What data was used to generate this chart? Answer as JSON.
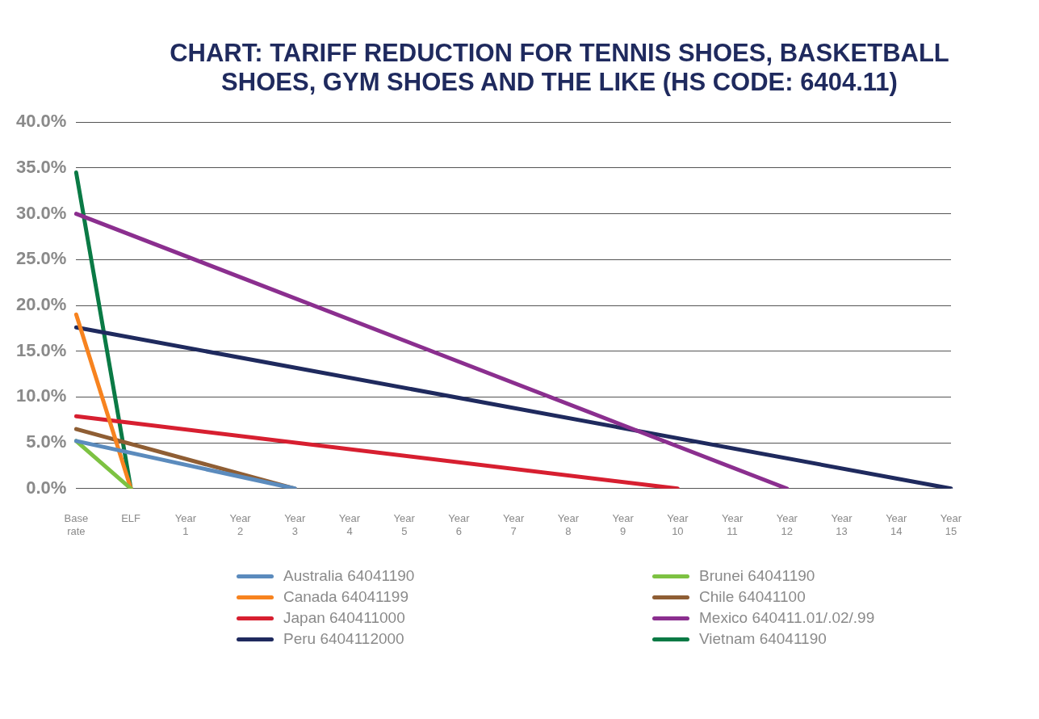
{
  "chart_data": {
    "type": "line",
    "title": "CHART: TARIFF REDUCTION FOR TENNIS SHOES, BASKETBALL SHOES, GYM SHOES AND THE LIKE (HS CODE: 6404.11)",
    "categories": [
      "Base rate",
      "ELF",
      "Year 1",
      "Year 2",
      "Year 3",
      "Year 4",
      "Year 5",
      "Year 6",
      "Year 7",
      "Year 8",
      "Year 9",
      "Year 10",
      "Year 11",
      "Year 12",
      "Year 13",
      "Year 14",
      "Year 15"
    ],
    "series": [
      {
        "name": "Australia 64041190",
        "color": "#5b8bbd",
        "values": [
          5.2,
          null,
          null,
          null,
          0,
          null,
          null,
          null,
          null,
          null,
          null,
          null,
          null,
          null,
          null,
          null,
          null
        ]
      },
      {
        "name": "Brunei 64041190",
        "color": "#7dc242",
        "values": [
          5.2,
          0,
          null,
          null,
          null,
          null,
          null,
          null,
          null,
          null,
          null,
          null,
          null,
          null,
          null,
          null,
          null
        ]
      },
      {
        "name": "Canada 64041199",
        "color": "#f7831f",
        "values": [
          19,
          0,
          null,
          null,
          null,
          null,
          null,
          null,
          null,
          null,
          null,
          null,
          null,
          null,
          null,
          null,
          null
        ]
      },
      {
        "name": "Chile 64041100",
        "color": "#8f5e34",
        "values": [
          6.5,
          null,
          null,
          null,
          0,
          null,
          null,
          null,
          null,
          null,
          null,
          null,
          null,
          null,
          null,
          null,
          null
        ]
      },
      {
        "name": "Japan 640411000",
        "color": "#d71f30",
        "values": [
          7.9,
          null,
          null,
          null,
          null,
          null,
          null,
          null,
          null,
          null,
          null,
          0,
          null,
          null,
          null,
          null,
          null
        ]
      },
      {
        "name": "Mexico 640411.01/.02/.99",
        "color": "#8b2f8f",
        "values": [
          30,
          null,
          null,
          null,
          null,
          null,
          null,
          null,
          null,
          null,
          null,
          null,
          null,
          0,
          null,
          null,
          null
        ]
      },
      {
        "name": "Peru 6404112000",
        "color": "#1f2a5e",
        "values": [
          17.6,
          null,
          null,
          null,
          null,
          null,
          null,
          null,
          null,
          null,
          null,
          null,
          null,
          null,
          null,
          null,
          0
        ]
      },
      {
        "name": "Vietnam 64041190",
        "color": "#0a7a45",
        "values": [
          34.5,
          0,
          null,
          null,
          null,
          null,
          null,
          null,
          null,
          null,
          null,
          null,
          null,
          null,
          null,
          null,
          null
        ]
      }
    ],
    "ylim": [
      0,
      40
    ],
    "yticks": [
      {
        "value": 0,
        "label": "0.0%"
      },
      {
        "value": 5,
        "label": "5.0%"
      },
      {
        "value": 10,
        "label": "10.0%"
      },
      {
        "value": 15,
        "label": "15.0%"
      },
      {
        "value": 20,
        "label": "20.0%"
      },
      {
        "value": 25,
        "label": "25.0%"
      },
      {
        "value": 30,
        "label": "30.0%"
      },
      {
        "value": 35,
        "label": "35.0%"
      },
      {
        "value": 40,
        "label": "40.0%"
      }
    ],
    "grid": "y",
    "legend": "bottom",
    "marker": "none",
    "line_style": "solid"
  }
}
